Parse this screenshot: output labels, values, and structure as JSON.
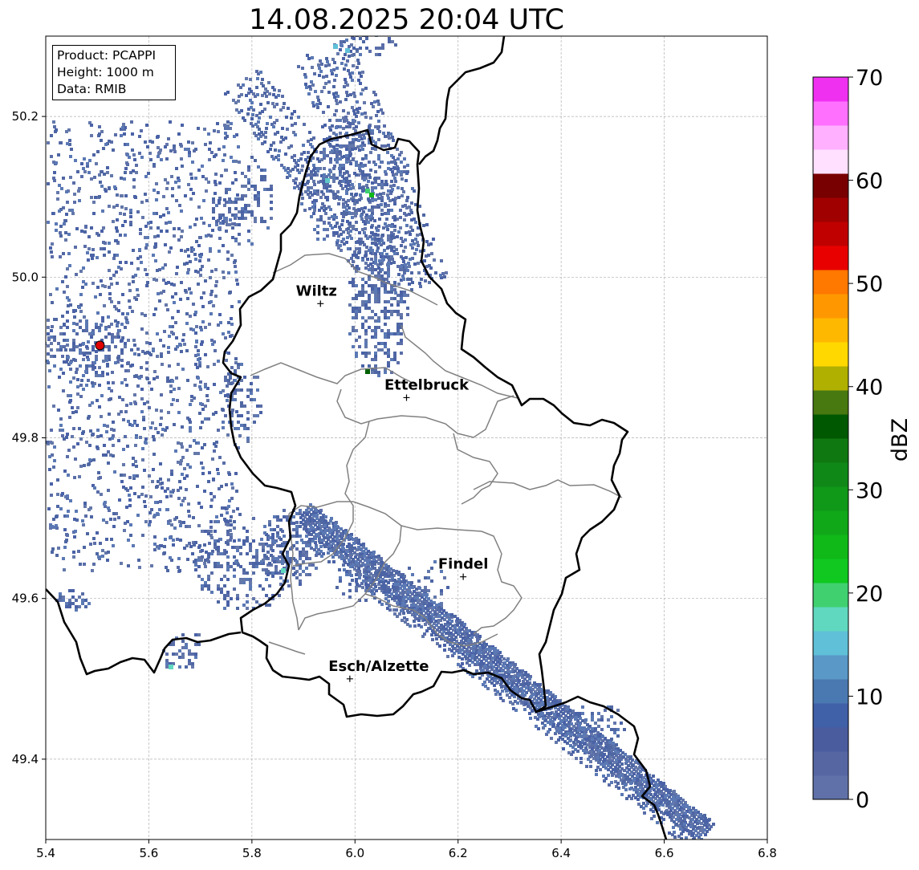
{
  "title": "14.08.2025 20:04 UTC",
  "info": {
    "product": "Product: PCAPPI",
    "height": "Height: 1000 m",
    "data": "Data: RMIB"
  },
  "map": {
    "lon_range": [
      5.4,
      6.8
    ],
    "lat_range": [
      49.3,
      50.3
    ],
    "x_ticks": [
      "5.4",
      "5.6",
      "5.8",
      "6.0",
      "6.2",
      "6.4",
      "6.6",
      "6.8"
    ],
    "y_ticks": [
      "49.4",
      "49.6",
      "49.8",
      "50.0",
      "50.2"
    ],
    "grid": true,
    "cities": [
      {
        "name": "Wiltz",
        "lon": 5.933,
        "lat": 49.967
      },
      {
        "name": "Ettelbruck",
        "lon": 6.1,
        "lat": 49.85
      },
      {
        "name": "Findel",
        "lon": 6.21,
        "lat": 49.627
      },
      {
        "name": "Esch/Alzette",
        "lon": 5.99,
        "lat": 49.5
      }
    ],
    "radar_site": {
      "lon": 5.505,
      "lat": 49.915,
      "color": "#e00000"
    },
    "border_color": "#000000",
    "canton_color": "#808080"
  },
  "colorbar": {
    "label": "dBZ",
    "ticks": [
      "0",
      "10",
      "20",
      "30",
      "40",
      "50",
      "60",
      "70"
    ],
    "range": [
      0,
      70
    ],
    "colors": [
      "#6070a8",
      "#5566a2",
      "#4a5c9e",
      "#4060a8",
      "#4a78b0",
      "#5a98c8",
      "#60c0d8",
      "#60d8c0",
      "#40d070",
      "#10c820",
      "#10b818",
      "#10a818",
      "#109818",
      "#108818",
      "#107810",
      "#005800",
      "#487810",
      "#b0b000",
      "#ffd800",
      "#ffb800",
      "#ff9800",
      "#ff7800",
      "#e80000",
      "#c00000",
      "#a00000",
      "#780000",
      "#ffe0ff",
      "#ffb0ff",
      "#ff70ff",
      "#f030f0"
    ]
  }
}
